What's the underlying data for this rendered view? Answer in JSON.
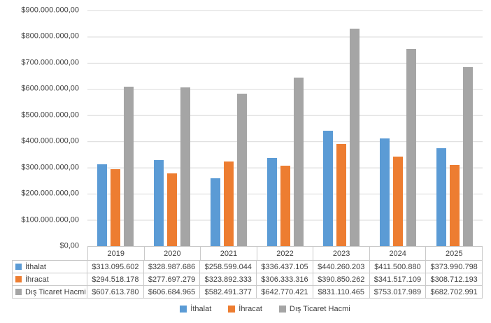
{
  "chart_data": {
    "type": "bar",
    "title": "",
    "categories": [
      "2019",
      "2020",
      "2021",
      "2022",
      "2023",
      "2024",
      "2025"
    ],
    "series": [
      {
        "name": "İthalat",
        "color": "#5B9BD5",
        "values": [
          313095602,
          328987686,
          258599044,
          336437105,
          440260203,
          411500880,
          373990798
        ]
      },
      {
        "name": "İhracat",
        "color": "#ED7D31",
        "values": [
          294518178,
          277697279,
          323892333,
          306333316,
          390850262,
          341517109,
          308712193
        ]
      },
      {
        "name": "Dış Ticaret Hacmi",
        "color": "#A5A5A5",
        "values": [
          607613780,
          606684965,
          582491377,
          642770421,
          831110465,
          753017989,
          682702991
        ]
      }
    ],
    "xlabel": "",
    "ylabel": "",
    "y_axis": {
      "min": 0,
      "max": 900000000,
      "step": 100000000,
      "tick_labels": [
        "$900.000.000,00",
        "$800.000.000,00",
        "$700.000.000,00",
        "$600.000.000,00",
        "$500.000.000,00",
        "$400.000.000,00",
        "$300.000.000,00",
        "$200.000.000,00",
        "$100.000.000,00",
        "$0,00"
      ]
    },
    "grid": true,
    "legend_position": "bottom"
  },
  "data_table": {
    "column_headers": [
      "2019",
      "2020",
      "2021",
      "2022",
      "2023",
      "2024",
      "2025"
    ],
    "rows": [
      {
        "label": "İthalat",
        "color": "#5B9BD5",
        "values": [
          "$313.095.602",
          "$328.987.686",
          "$258.599.044",
          "$336.437.105",
          "$440.260.203",
          "$411.500.880",
          "$373.990.798"
        ]
      },
      {
        "label": "İhracat",
        "color": "#ED7D31",
        "values": [
          "$294.518.178",
          "$277.697.279",
          "$323.892.333",
          "$306.333.316",
          "$390.850.262",
          "$341.517.109",
          "$308.712.193"
        ]
      },
      {
        "label": "Dış Ticaret Hacmi",
        "color": "#A5A5A5",
        "values": [
          "$607.613.780",
          "$606.684.965",
          "$582.491.377",
          "$642.770.421",
          "$831.110.465",
          "$753.017.989",
          "$682.702.991"
        ]
      }
    ]
  },
  "legend": {
    "items": [
      {
        "label": "İthalat",
        "color": "#5B9BD5"
      },
      {
        "label": "İhracat",
        "color": "#ED7D31"
      },
      {
        "label": "Dış Ticaret Hacmi",
        "color": "#A5A5A5"
      }
    ]
  },
  "colors": {
    "gridline": "#D9D9D9",
    "table_border": "#C9C9C9",
    "axis_line": "#BFBFBF",
    "text": "#404040",
    "background": "#FFFFFF"
  }
}
